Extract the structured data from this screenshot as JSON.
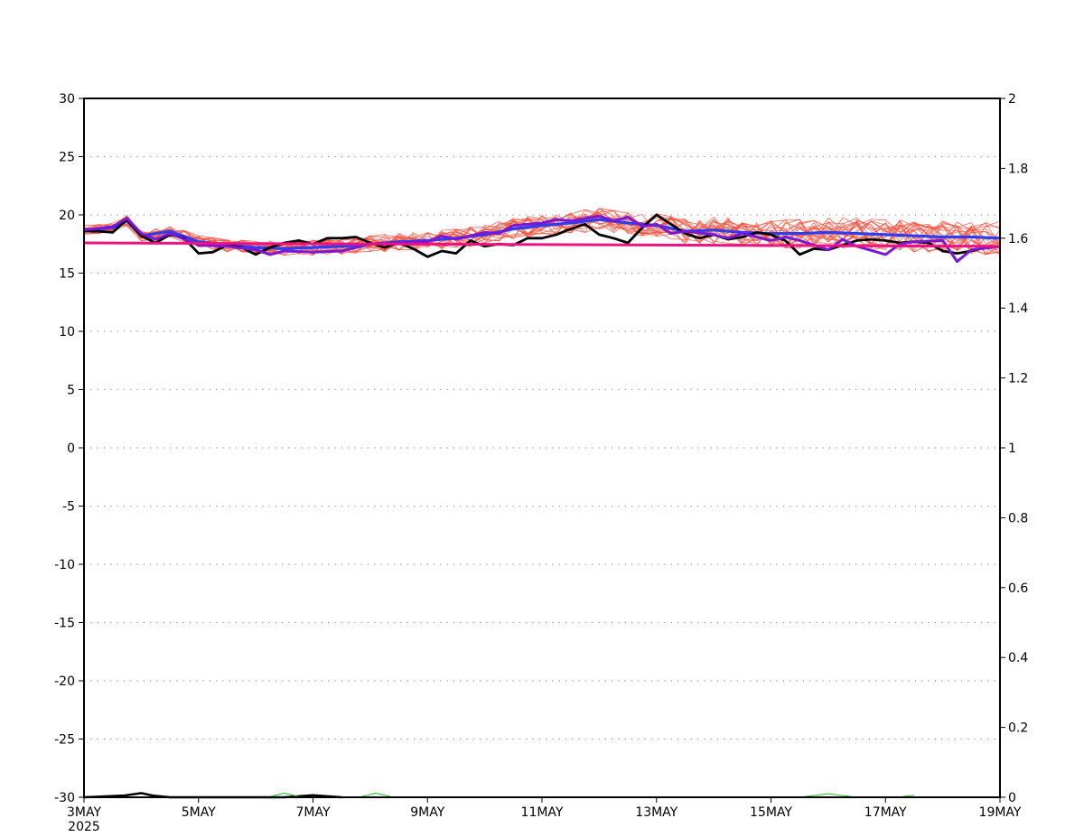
{
  "chart_data": {
    "type": "line",
    "title": "",
    "xlabel": "",
    "ylabel": "",
    "ylim": [
      -30,
      30
    ],
    "y2lim": [
      0,
      2
    ],
    "y_ticks": [
      30,
      25,
      20,
      15,
      10,
      5,
      0,
      -5,
      -10,
      -15,
      -20,
      -25,
      -30
    ],
    "y_tick_labels": [
      "30",
      "25",
      "20",
      "15",
      "10",
      "5",
      "0",
      "-5",
      "-10",
      "-15",
      "-20",
      "-25",
      "-30"
    ],
    "y2_ticks": [
      2,
      1.8,
      1.6,
      1.4,
      1.2,
      1,
      0.8,
      0.6,
      0.4,
      0.2,
      0
    ],
    "y2_tick_labels": [
      "2",
      "1.8",
      "1.6",
      "1.4",
      "1.2",
      "1",
      "0.8",
      "0.6",
      "0.4",
      "0.2",
      "0"
    ],
    "xlim": [
      0,
      16
    ],
    "x_ticks": [
      0,
      2,
      4,
      6,
      8,
      10,
      12,
      14,
      16
    ],
    "x_tick_labels": [
      "3MAY",
      "5MAY",
      "7MAY",
      "9MAY",
      "11MAY",
      "13MAY",
      "15MAY",
      "17MAY",
      "19MAY"
    ],
    "x_year_label": "2025",
    "grid": "horizontal dotted",
    "colors": {
      "members": "#ff4d3a",
      "observed": "#000000",
      "mean": "#2e3df0",
      "control": "#7a17d6",
      "climatology": "#ee1180",
      "precip": "#22bb22",
      "precip_obs": "#000000"
    },
    "series": [
      {
        "role": "observed",
        "x": [
          0,
          0.25,
          0.5,
          0.75,
          1,
          1.25,
          1.5,
          1.75,
          2,
          2.25,
          2.5,
          2.75,
          3,
          3.25,
          3.5,
          3.75,
          4,
          4.25,
          4.5,
          4.75,
          5,
          5.25,
          5.5,
          5.75,
          6,
          6.25,
          6.5,
          6.75,
          7,
          7.25,
          7.5,
          7.75,
          8,
          8.25,
          8.5,
          8.75,
          9,
          9.25,
          9.5,
          9.75,
          10,
          10.25,
          10.5,
          10.75,
          11,
          11.25,
          11.5,
          11.75,
          12,
          12.25,
          12.5,
          12.75,
          13,
          13.25,
          13.5,
          13.75,
          14,
          14.25,
          14.5,
          14.75,
          15,
          15.25,
          15.5,
          15.75,
          16
        ],
        "values": [
          18.6,
          18.6,
          18.5,
          19.6,
          18.2,
          17.6,
          18.3,
          18.0,
          16.7,
          16.8,
          17.4,
          17.2,
          16.6,
          17.2,
          17.6,
          17.8,
          17.5,
          18.0,
          18.0,
          18.1,
          17.6,
          17.2,
          17.6,
          17.1,
          16.4,
          16.9,
          16.7,
          17.8,
          17.3,
          17.5,
          17.4,
          18.0,
          18.0,
          18.3,
          18.8,
          19.2,
          18.3,
          18.0,
          17.6,
          18.9,
          20.0,
          19.2,
          18.4,
          18.0,
          18.3,
          17.9,
          18.1,
          18.5,
          18.3,
          17.8,
          16.6,
          17.1,
          17.0,
          17.4,
          17.8,
          17.9,
          17.8,
          17.6,
          17.7,
          17.6,
          16.9,
          16.7,
          16.9,
          17.2,
          17.3
        ]
      },
      {
        "role": "mean",
        "x": [
          0,
          0.5,
          0.75,
          1,
          1.5,
          2,
          2.5,
          3,
          3.5,
          4,
          4.5,
          5,
          5.5,
          6,
          6.5,
          7,
          7.5,
          8,
          8.5,
          9,
          9.5,
          10,
          10.5,
          11,
          11.5,
          12,
          12.5,
          13,
          13.5,
          14,
          14.5,
          15,
          15.5,
          16
        ],
        "values": [
          18.7,
          18.9,
          19.5,
          18.2,
          18.6,
          17.7,
          17.4,
          17.2,
          17.1,
          17.2,
          17.3,
          17.5,
          17.7,
          17.8,
          18.0,
          18.3,
          18.8,
          19.1,
          19.3,
          19.6,
          19.3,
          19.1,
          18.6,
          18.7,
          18.5,
          18.4,
          18.4,
          18.5,
          18.4,
          18.3,
          18.2,
          18.1,
          18.1,
          18.0
        ]
      },
      {
        "role": "control",
        "x": [
          0,
          0.5,
          0.75,
          1,
          1.25,
          1.5,
          2,
          2.5,
          3,
          3.25,
          3.5,
          4,
          4.5,
          5,
          5.5,
          6,
          6.25,
          6.5,
          7,
          7.25,
          7.5,
          8,
          8.25,
          8.5,
          9,
          9.25,
          9.5,
          9.75,
          10,
          10.25,
          10.5,
          11,
          11.25,
          11.5,
          12,
          12.25,
          12.5,
          13,
          13.25,
          13.5,
          14,
          14.25,
          14.5,
          15,
          15.25,
          15.5,
          16
        ],
        "values": [
          18.7,
          19.0,
          19.7,
          18.4,
          17.9,
          18.4,
          17.4,
          17.3,
          17.0,
          16.6,
          16.9,
          16.8,
          16.9,
          17.5,
          17.6,
          17.7,
          18.2,
          17.9,
          18.5,
          18.4,
          19.1,
          19.3,
          19.6,
          19.5,
          19.9,
          19.5,
          19.8,
          19.0,
          19.2,
          18.4,
          18.6,
          18.3,
          18.0,
          18.4,
          17.8,
          18.1,
          17.8,
          17.0,
          17.9,
          17.3,
          16.6,
          17.5,
          17.7,
          17.8,
          16.0,
          17.0,
          17.3
        ]
      },
      {
        "role": "climatology",
        "x": [
          0,
          16
        ],
        "values": [
          17.6,
          17.3
        ]
      }
    ],
    "precip_series": [
      {
        "role": "observed",
        "x": [
          0,
          0.7,
          1.0,
          1.2,
          1.5,
          3.5,
          4.0,
          4.5
        ],
        "values": [
          0,
          0.005,
          0.012,
          0.005,
          0,
          0,
          0.006,
          0
        ]
      },
      {
        "role": "members",
        "x": [
          3.2,
          3.5,
          3.8,
          4.8,
          5.1,
          5.4,
          12.5,
          13.0,
          13.5,
          14.2,
          14.5
        ],
        "values": [
          0,
          0.012,
          0,
          0,
          0.012,
          0,
          0,
          0.01,
          0,
          0,
          0.006
        ]
      }
    ]
  }
}
